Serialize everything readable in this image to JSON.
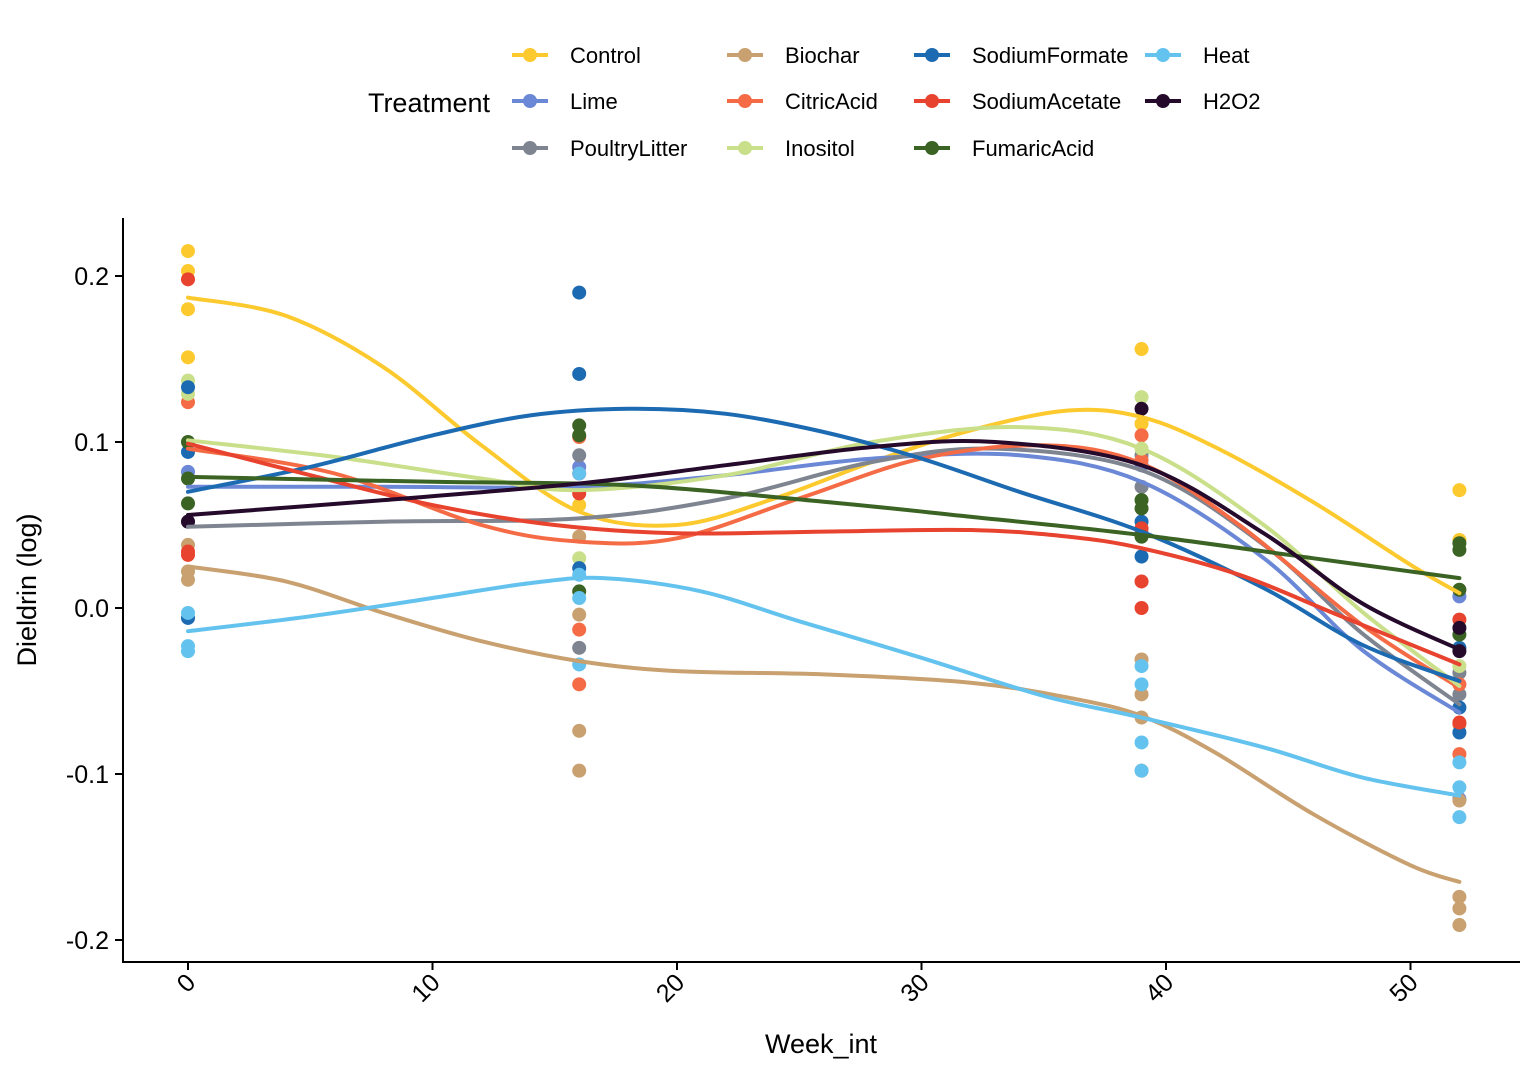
{
  "chart_data": {
    "type": "scatter",
    "title": "",
    "xlabel": "Week_int",
    "ylabel": "Dieldrin (log)",
    "xlim": [
      -2.5,
      54.5
    ],
    "ylim": [
      -0.212,
      0.235
    ],
    "x_ticks": [
      0,
      10,
      20,
      30,
      40,
      50
    ],
    "x_tick_labels": [
      "0",
      "10",
      "20",
      "30",
      "40",
      "50"
    ],
    "y_ticks": [
      -0.2,
      -0.1,
      0.0,
      0.1,
      0.2
    ],
    "y_tick_labels": [
      "-0.2",
      "-0.1",
      "0.0",
      "0.1",
      "0.2"
    ],
    "grid": false,
    "smoothing": "loess",
    "legend": {
      "title": "Treatment",
      "position": "top",
      "columns": 4
    },
    "series": [
      {
        "name": "Control",
        "color": "#FCCA2E",
        "points": [
          [
            0,
            0.215
          ],
          [
            0,
            0.203
          ],
          [
            0,
            0.18
          ],
          [
            0,
            0.151
          ],
          [
            16,
            0.062
          ],
          [
            39,
            0.156
          ],
          [
            39,
            0.111
          ],
          [
            52,
            0.071
          ],
          [
            52,
            0.041
          ]
        ],
        "curve": [
          [
            0,
            0.187
          ],
          [
            4,
            0.176
          ],
          [
            8,
            0.145
          ],
          [
            12,
            0.098
          ],
          [
            16,
            0.058
          ],
          [
            20,
            0.05
          ],
          [
            24,
            0.066
          ],
          [
            28,
            0.088
          ],
          [
            32,
            0.107
          ],
          [
            36,
            0.119
          ],
          [
            39,
            0.115
          ],
          [
            42,
            0.097
          ],
          [
            46,
            0.064
          ],
          [
            50,
            0.026
          ],
          [
            52,
            0.009
          ]
        ]
      },
      {
        "name": "Lime",
        "color": "#6B88D6",
        "points": [
          [
            0,
            0.082
          ],
          [
            16,
            0.085
          ],
          [
            39,
            0.086
          ],
          [
            52,
            0.007
          ],
          [
            52,
            -0.115
          ]
        ],
        "curve": [
          [
            0,
            0.073
          ],
          [
            8,
            0.073
          ],
          [
            16,
            0.073
          ],
          [
            22,
            0.08
          ],
          [
            28,
            0.09
          ],
          [
            34,
            0.092
          ],
          [
            39,
            0.076
          ],
          [
            44,
            0.03
          ],
          [
            48,
            -0.025
          ],
          [
            52,
            -0.063
          ]
        ]
      },
      {
        "name": "PoultryLitter",
        "color": "#7F8590",
        "points": [
          [
            0,
            0.052
          ],
          [
            16,
            0.092
          ],
          [
            16,
            -0.024
          ],
          [
            39,
            0.092
          ],
          [
            39,
            0.073
          ],
          [
            52,
            -0.039
          ],
          [
            52,
            -0.052
          ]
        ],
        "curve": [
          [
            0,
            0.049
          ],
          [
            8,
            0.052
          ],
          [
            16,
            0.054
          ],
          [
            22,
            0.066
          ],
          [
            28,
            0.088
          ],
          [
            33,
            0.096
          ],
          [
            39,
            0.083
          ],
          [
            44,
            0.038
          ],
          [
            48,
            -0.015
          ],
          [
            52,
            -0.058
          ]
        ]
      },
      {
        "name": "Biochar",
        "color": "#C9A06F",
        "points": [
          [
            0,
            0.038
          ],
          [
            0,
            0.022
          ],
          [
            0,
            0.017
          ],
          [
            16,
            0.043
          ],
          [
            16,
            -0.004
          ],
          [
            16,
            -0.074
          ],
          [
            16,
            -0.098
          ],
          [
            39,
            -0.031
          ],
          [
            39,
            -0.052
          ],
          [
            39,
            -0.066
          ],
          [
            39,
            -0.098
          ],
          [
            52,
            -0.174
          ],
          [
            52,
            -0.181
          ],
          [
            52,
            -0.191
          ],
          [
            52,
            -0.116
          ]
        ],
        "curve": [
          [
            0,
            0.025
          ],
          [
            4,
            0.016
          ],
          [
            8,
            -0.003
          ],
          [
            12,
            -0.02
          ],
          [
            16,
            -0.032
          ],
          [
            20,
            -0.038
          ],
          [
            26,
            -0.04
          ],
          [
            32,
            -0.045
          ],
          [
            36,
            -0.054
          ],
          [
            39,
            -0.065
          ],
          [
            42,
            -0.087
          ],
          [
            46,
            -0.124
          ],
          [
            50,
            -0.155
          ],
          [
            52,
            -0.165
          ]
        ]
      },
      {
        "name": "CitricAcid",
        "color": "#F46B45",
        "points": [
          [
            0,
            0.124
          ],
          [
            16,
            0.103
          ],
          [
            16,
            -0.013
          ],
          [
            16,
            -0.046
          ],
          [
            39,
            0.104
          ],
          [
            39,
            0.089
          ],
          [
            52,
            -0.088
          ],
          [
            52,
            -0.07
          ],
          [
            52,
            -0.046
          ]
        ],
        "curve": [
          [
            0,
            0.096
          ],
          [
            6,
            0.081
          ],
          [
            12,
            0.05
          ],
          [
            16,
            0.04
          ],
          [
            20,
            0.042
          ],
          [
            25,
            0.066
          ],
          [
            30,
            0.09
          ],
          [
            35,
            0.098
          ],
          [
            39,
            0.087
          ],
          [
            43,
            0.05
          ],
          [
            48,
            -0.01
          ],
          [
            52,
            -0.048
          ]
        ]
      },
      {
        "name": "Inositol",
        "color": "#C9DF8A",
        "points": [
          [
            0,
            0.137
          ],
          [
            0,
            0.129
          ],
          [
            16,
            0.072
          ],
          [
            16,
            0.03
          ],
          [
            39,
            0.127
          ],
          [
            39,
            0.096
          ],
          [
            52,
            -0.035
          ]
        ],
        "curve": [
          [
            0,
            0.101
          ],
          [
            6,
            0.091
          ],
          [
            12,
            0.078
          ],
          [
            16,
            0.071
          ],
          [
            22,
            0.08
          ],
          [
            28,
            0.1
          ],
          [
            34,
            0.109
          ],
          [
            39,
            0.096
          ],
          [
            44,
            0.05
          ],
          [
            48,
            -0.002
          ],
          [
            52,
            -0.047
          ]
        ]
      },
      {
        "name": "SodiumFormate",
        "color": "#1C6AB1",
        "points": [
          [
            0,
            0.133
          ],
          [
            0,
            0.094
          ],
          [
            0,
            -0.006
          ],
          [
            16,
            0.19
          ],
          [
            16,
            0.141
          ],
          [
            16,
            0.024
          ],
          [
            39,
            0.052
          ],
          [
            39,
            0.031
          ],
          [
            39,
            0.045
          ],
          [
            52,
            -0.06
          ],
          [
            52,
            -0.075
          ],
          [
            52,
            -0.024
          ]
        ],
        "curve": [
          [
            0,
            0.07
          ],
          [
            5,
            0.085
          ],
          [
            10,
            0.104
          ],
          [
            14,
            0.116
          ],
          [
            18,
            0.12
          ],
          [
            22,
            0.117
          ],
          [
            26,
            0.106
          ],
          [
            30,
            0.09
          ],
          [
            34,
            0.07
          ],
          [
            39,
            0.046
          ],
          [
            44,
            0.012
          ],
          [
            48,
            -0.022
          ],
          [
            52,
            -0.044
          ]
        ]
      },
      {
        "name": "SodiumAcetate",
        "color": "#E8432F",
        "points": [
          [
            0,
            0.198
          ],
          [
            0,
            0.034
          ],
          [
            0,
            0.032
          ],
          [
            16,
            0.081
          ],
          [
            16,
            0.069
          ],
          [
            39,
            0.048
          ],
          [
            39,
            0.016
          ],
          [
            39,
            0.0
          ],
          [
            52,
            -0.007
          ],
          [
            52,
            -0.069
          ]
        ],
        "curve": [
          [
            0,
            0.099
          ],
          [
            5,
            0.08
          ],
          [
            10,
            0.062
          ],
          [
            15,
            0.05
          ],
          [
            20,
            0.045
          ],
          [
            26,
            0.046
          ],
          [
            32,
            0.047
          ],
          [
            36,
            0.043
          ],
          [
            39,
            0.036
          ],
          [
            43,
            0.02
          ],
          [
            47,
            -0.004
          ],
          [
            52,
            -0.034
          ]
        ]
      },
      {
        "name": "FumaricAcid",
        "color": "#3B6324",
        "points": [
          [
            0,
            0.1
          ],
          [
            0,
            0.078
          ],
          [
            0,
            0.063
          ],
          [
            16,
            0.11
          ],
          [
            16,
            0.104
          ],
          [
            16,
            0.01
          ],
          [
            39,
            0.065
          ],
          [
            39,
            0.06
          ],
          [
            39,
            0.043
          ],
          [
            52,
            0.039
          ],
          [
            52,
            0.035
          ],
          [
            52,
            0.011
          ],
          [
            52,
            -0.016
          ]
        ],
        "curve": [
          [
            0,
            0.079
          ],
          [
            10,
            0.076
          ],
          [
            18,
            0.074
          ],
          [
            26,
            0.064
          ],
          [
            32,
            0.055
          ],
          [
            39,
            0.044
          ],
          [
            46,
            0.03
          ],
          [
            52,
            0.018
          ]
        ]
      },
      {
        "name": "Heat",
        "color": "#64C3EE",
        "points": [
          [
            0,
            -0.003
          ],
          [
            0,
            -0.023
          ],
          [
            0,
            -0.026
          ],
          [
            16,
            0.081
          ],
          [
            16,
            0.02
          ],
          [
            16,
            0.006
          ],
          [
            16,
            -0.034
          ],
          [
            39,
            -0.035
          ],
          [
            39,
            -0.046
          ],
          [
            39,
            -0.081
          ],
          [
            39,
            -0.098
          ],
          [
            52,
            -0.093
          ],
          [
            52,
            -0.108
          ],
          [
            52,
            -0.126
          ]
        ],
        "curve": [
          [
            0,
            -0.014
          ],
          [
            5,
            -0.005
          ],
          [
            10,
            0.006
          ],
          [
            14,
            0.015
          ],
          [
            17,
            0.018
          ],
          [
            21,
            0.01
          ],
          [
            25,
            -0.008
          ],
          [
            30,
            -0.03
          ],
          [
            35,
            -0.053
          ],
          [
            39,
            -0.066
          ],
          [
            44,
            -0.084
          ],
          [
            48,
            -0.102
          ],
          [
            52,
            -0.113
          ]
        ]
      },
      {
        "name": "H2O2",
        "color": "#250A2C",
        "points": [
          [
            0,
            0.052
          ],
          [
            39,
            0.12
          ],
          [
            52,
            -0.012
          ],
          [
            52,
            -0.026
          ]
        ],
        "curve": [
          [
            0,
            0.056
          ],
          [
            8,
            0.065
          ],
          [
            16,
            0.075
          ],
          [
            22,
            0.086
          ],
          [
            28,
            0.097
          ],
          [
            33,
            0.1
          ],
          [
            39,
            0.086
          ],
          [
            44,
            0.045
          ],
          [
            48,
            0.003
          ],
          [
            52,
            -0.025
          ]
        ]
      }
    ]
  }
}
